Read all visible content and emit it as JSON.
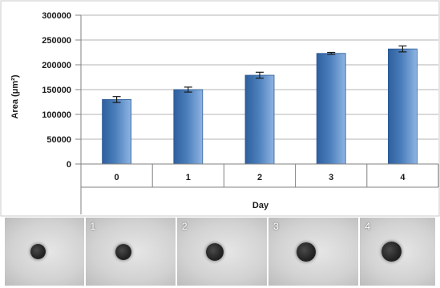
{
  "chart_data": {
    "type": "bar",
    "categories": [
      "0",
      "1",
      "2",
      "3",
      "4"
    ],
    "series": [
      {
        "values": [
          130000,
          150000,
          179000,
          223000,
          232000
        ],
        "errors": [
          6000,
          5000,
          6000,
          2000,
          6000
        ]
      }
    ],
    "xlabel": "Day",
    "ylabel": "Area (μm²)",
    "ylim": [
      0,
      300000
    ],
    "yticks": [
      "0",
      "50000",
      "100000",
      "150000",
      "200000",
      "250000",
      "300000"
    ],
    "grid": "horizontal",
    "bar_color": "#4a7ebb",
    "error_bars": true
  },
  "micrographs": {
    "labels": [
      "",
      "1",
      "2",
      "3",
      "4"
    ],
    "spheroid_sizes": [
      0.72,
      0.78,
      0.85,
      0.92,
      0.97
    ]
  }
}
